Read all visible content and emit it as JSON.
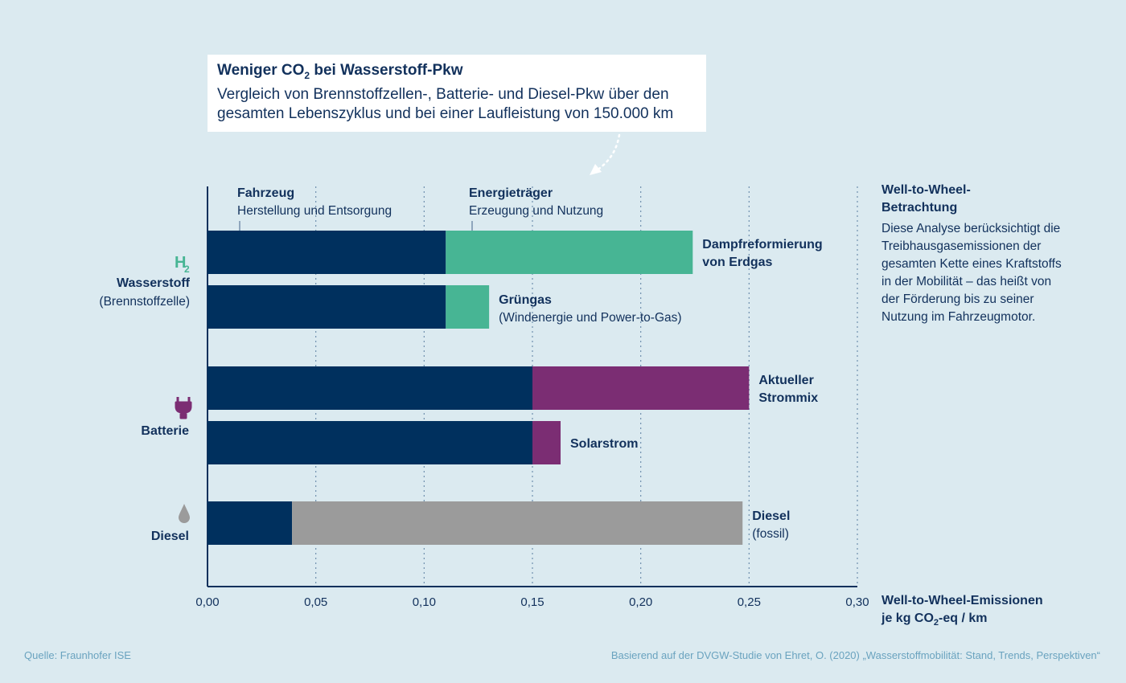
{
  "header": {
    "title_part1": "Weniger CO",
    "title_sub": "2",
    "title_part2": " bei Wasserstoff-Pkw",
    "subtitle_line1": "Vergleich von Brennstoffzellen-, Batterie- und Diesel-Pkw über den",
    "subtitle_line2": "gesamten Lebenszyklus und bei einer Laufleistung von 150.000 km"
  },
  "side_note": {
    "title_line1": "Well-to-Wheel-",
    "title_line2": "Betrachtung",
    "text": "Diese Analyse berücksichtigt die Treibhausgasemissionen der gesamten Kette eines Kraftstoffs in der Mobilität – das heißt von der Förderung bis zu seiner Nutzung im Fahrzeugmotor."
  },
  "x_axis_title": {
    "line1": "Well-to-Wheel-Emissionen",
    "line2_part1": "je kg CO",
    "line2_sub": "2",
    "line2_part2": "-eq / km"
  },
  "footer": {
    "source": "Quelle: Fraunhofer ISE",
    "basis": "Basierend auf der DVGW-Studie von Ehret, O. (2020) „Wasserstoffmobilität: Stand, Trends, Perspektiven“"
  },
  "colors": {
    "fahrzeug": "#00305e",
    "wasserstoff": "#47b594",
    "batterie": "#7b2d73",
    "diesel": "#9b9b9b",
    "text": "#12315c",
    "background": "#dbeaf0"
  },
  "icons": {
    "wasserstoff": "h2-icon",
    "batterie": "plug-icon",
    "diesel": "drop-icon"
  },
  "chart_data": {
    "type": "bar",
    "orientation": "horizontal",
    "stacked": true,
    "xlim": [
      0,
      0.3
    ],
    "xticks": [
      "0,00",
      "0,05",
      "0,10",
      "0,15",
      "0,20",
      "0,25",
      "0,30"
    ],
    "grid": "vertical-dotted",
    "segment_legend": [
      {
        "name": "Fahrzeug",
        "description": "Herstellung und Entsorgung"
      },
      {
        "name": "Energieträger",
        "description": "Erzeugung und Nutzung"
      }
    ],
    "groups": [
      {
        "icon_text": "H",
        "icon_sub": "2",
        "name": "Wasserstoff",
        "detail": "(Brennstoffzelle)",
        "color_key": "wasserstoff",
        "bars": [
          {
            "label_bold": "Dampfreformierung von Erdgas",
            "label_light": "",
            "fahrzeug": 0.11,
            "energietraeger": 0.114
          },
          {
            "label_bold": "Grüngas",
            "label_light": "(Windenergie und Power-to-Gas)",
            "fahrzeug": 0.11,
            "energietraeger": 0.02
          }
        ]
      },
      {
        "name": "Batterie",
        "detail": "",
        "color_key": "batterie",
        "bars": [
          {
            "label_bold": "Aktueller Strommix",
            "label_light": "",
            "fahrzeug": 0.15,
            "energietraeger": 0.1
          },
          {
            "label_bold": "Solarstrom",
            "label_light": "",
            "fahrzeug": 0.15,
            "energietraeger": 0.013
          }
        ]
      },
      {
        "name": "Diesel",
        "detail": "",
        "color_key": "diesel",
        "bars": [
          {
            "label_bold": "Diesel",
            "label_light": "(fossil)",
            "fahrzeug": 0.039,
            "energietraeger": 0.208
          }
        ]
      }
    ]
  }
}
